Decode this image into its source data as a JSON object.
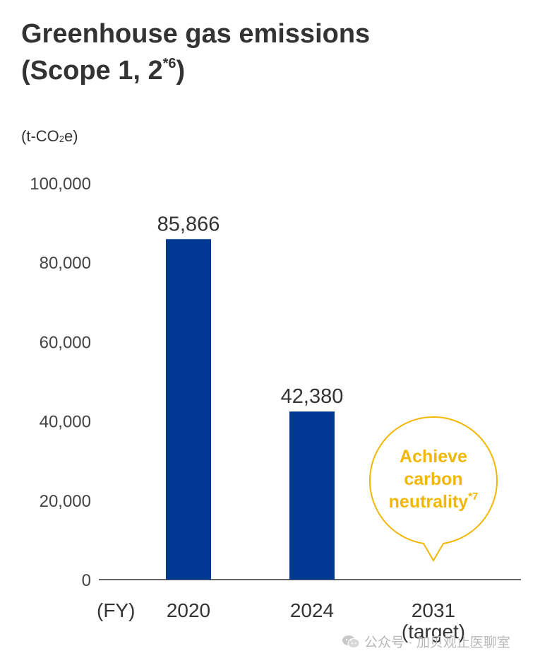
{
  "chart_data": {
    "type": "bar",
    "title_line1": "Greenhouse gas emissions",
    "title_line2": "(Scope 1, 2",
    "title_note": "*6",
    "title_close": ")",
    "unit_prefix": "(t-CO",
    "unit_sub": "2",
    "unit_suffix": "e)",
    "xlabel": "(FY)",
    "categories": [
      "2020",
      "2024",
      "2031"
    ],
    "category_sublabels": [
      "",
      "",
      "(target)"
    ],
    "values": [
      85866,
      null,
      null
    ],
    "bars": [
      {
        "category": "2020",
        "value": 85866,
        "label": "85,866"
      },
      {
        "category": "2024",
        "value": 42380,
        "label": "42,380"
      },
      {
        "category": "2031",
        "value": null,
        "label": ""
      }
    ],
    "ylim": [
      0,
      100000
    ],
    "yticks": [
      0,
      20000,
      40000,
      60000,
      80000,
      100000
    ],
    "ytick_labels": [
      "0",
      "20,000",
      "40,000",
      "60,000",
      "80,000",
      "100,000"
    ],
    "grid": false,
    "bar_color": "#003893",
    "annotation": {
      "category": "2031",
      "lines": [
        "Achieve",
        "carbon",
        "neutrality"
      ],
      "note": "*7",
      "color": "#f2b705"
    }
  },
  "watermark": {
    "text": "公众号 · 加贝观止医聊室",
    "icon": "wechat-icon"
  }
}
